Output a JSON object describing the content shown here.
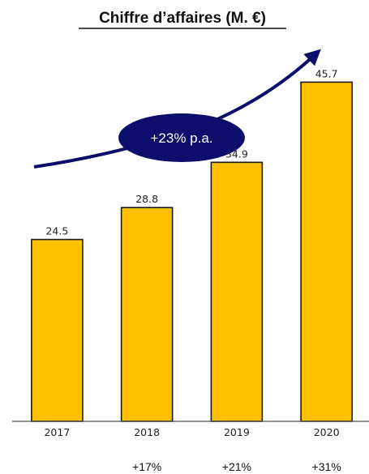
{
  "chart_data": {
    "type": "bar",
    "title": "Chiffre d’affaires (M. €)",
    "categories": [
      "2017",
      "2018",
      "2019",
      "2020"
    ],
    "values": [
      24.5,
      28.8,
      34.9,
      45.7
    ],
    "value_labels": [
      "24.5",
      "28.8",
      "34.9",
      "45.7"
    ],
    "growth_labels": [
      "",
      "+17%",
      "+21%",
      "+31%"
    ],
    "cagr_annotation": "+23% p.a.",
    "ylim": [
      0,
      50
    ],
    "grid": false,
    "legend": "none",
    "colors": {
      "bar_fill": "#FFC000",
      "bar_stroke": "#1a1a1a",
      "badge": "#0d0d6b",
      "arrow": "#0d0d6b",
      "baseline": "#555555"
    }
  }
}
